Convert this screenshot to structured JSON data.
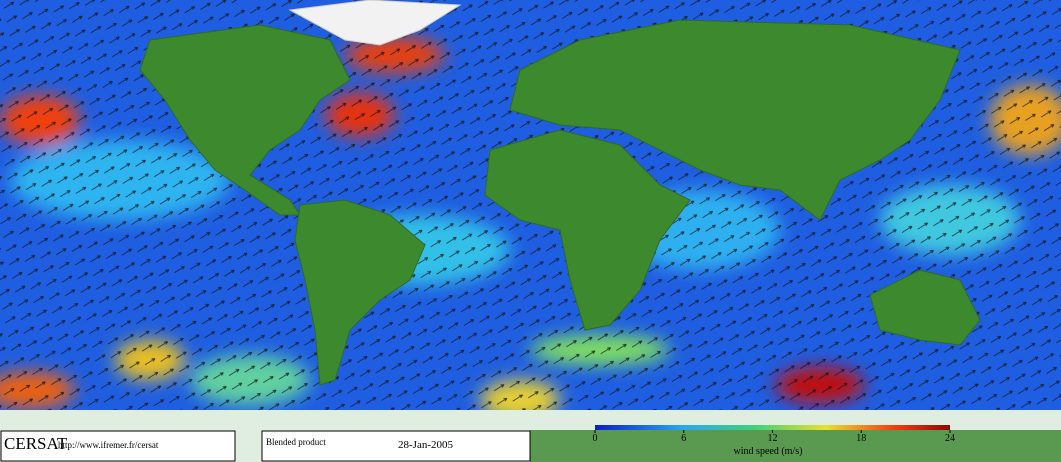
{
  "footer": {
    "brand": "CERSAT",
    "url": "http://www.ifremer.fr/cersat",
    "product": "Blended product",
    "date": "28-Jan-2005"
  },
  "colorbar": {
    "label": "wind speed (m/s)",
    "range": [
      0,
      24
    ],
    "ticks": [
      0,
      6,
      12,
      18,
      24
    ]
  }
}
